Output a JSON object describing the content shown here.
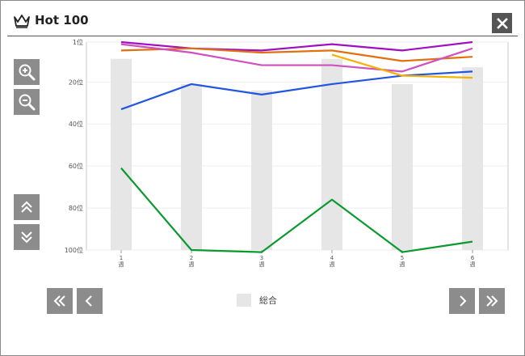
{
  "header": {
    "title": "Hot 100",
    "close_label": "✕"
  },
  "controls": {
    "zoom_in": "zoom-in",
    "zoom_out": "zoom-out",
    "scroll_up": "scroll-up",
    "scroll_down": "scroll-down"
  },
  "navigation": {
    "first": "«",
    "prev": "‹",
    "next": "›",
    "last": "»"
  },
  "legend": {
    "label": "総合"
  },
  "colors": {
    "button": "#8c8c8c",
    "bar": "#e6e6e6",
    "grid": "#eeeeee"
  },
  "chart_data": {
    "type": "line",
    "categories": [
      [
        "1",
        "週"
      ],
      [
        "2",
        "週"
      ],
      [
        "3",
        "週"
      ],
      [
        "4",
        "週"
      ],
      [
        "5",
        "週"
      ],
      [
        "6",
        "週"
      ]
    ],
    "y_ticks": [
      "1位",
      "20位",
      "40位",
      "60位",
      "80位",
      "100位"
    ],
    "y_tick_values": [
      1,
      20,
      40,
      60,
      80,
      100
    ],
    "ylim": [
      1,
      100
    ],
    "y_inverted": true,
    "bars": {
      "name": "総合",
      "values": [
        9,
        21,
        24,
        9,
        21,
        13
      ]
    },
    "series": [
      {
        "color": "#2255e0",
        "values": [
          33,
          21,
          26,
          21,
          17,
          15
        ]
      },
      {
        "color": "#0a9a30",
        "values": [
          61,
          100,
          101,
          76,
          101,
          96
        ]
      },
      {
        "color": "#a010c0",
        "values": [
          1,
          4,
          5,
          2,
          5,
          1
        ]
      },
      {
        "color": "#e07010",
        "values": [
          5,
          4,
          6,
          5,
          10,
          8
        ]
      },
      {
        "color": "#d050c0",
        "values": [
          2,
          6,
          12,
          12,
          15,
          4
        ]
      },
      {
        "color": "#f5b000",
        "values": [
          null,
          null,
          null,
          7,
          17,
          18
        ]
      }
    ]
  }
}
